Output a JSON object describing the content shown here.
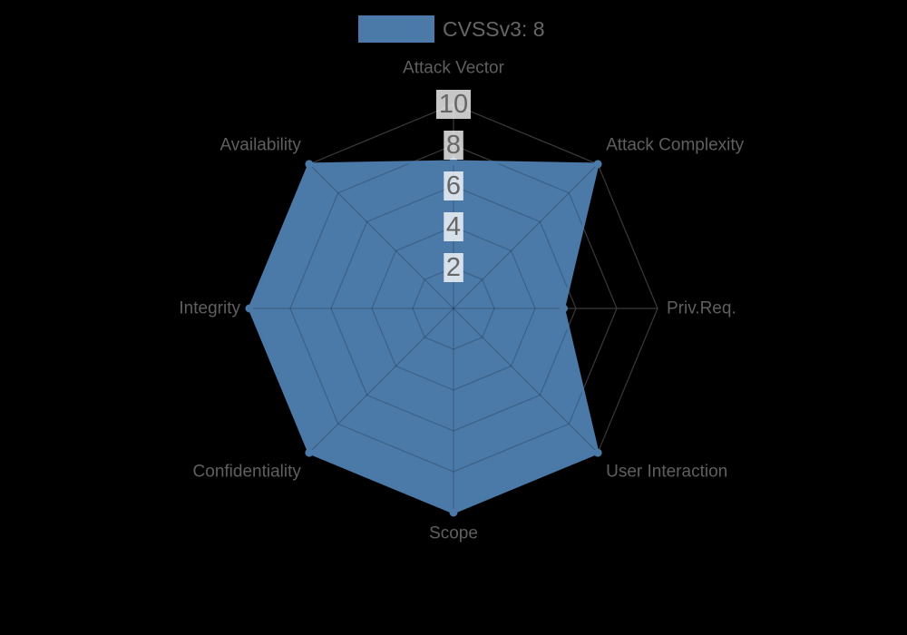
{
  "chart_data": {
    "type": "radar",
    "legend": {
      "label": "CVSSv3: 8",
      "position": "top"
    },
    "axes": [
      "Attack Vector",
      "Attack Complexity",
      "Priv.Req.",
      "User Interaction",
      "Scope",
      "Confidentiality",
      "Integrity",
      "Availability"
    ],
    "series": [
      {
        "name": "CVSSv3: 8",
        "values": [
          7.2,
          10,
          5.4,
          10,
          10,
          10,
          10,
          10
        ]
      }
    ],
    "ticks": [
      2,
      4,
      6,
      8,
      10
    ],
    "rmin": 0,
    "rmax": 10,
    "grid_shape": "polygon",
    "grid_on": true,
    "colors": {
      "background": "#000000",
      "series_fill": "#4b79a8",
      "series_border": "#4b79a8",
      "point_dot": "#4b79a8",
      "axis_label": "#5f5f5f",
      "tick_text": "#666666",
      "tick_backdrop": "rgba(255,255,255,0.78)",
      "grid_line_outside": "#3a3a3a",
      "grid_line_inside": "rgba(0,0,0,0.2)"
    }
  }
}
